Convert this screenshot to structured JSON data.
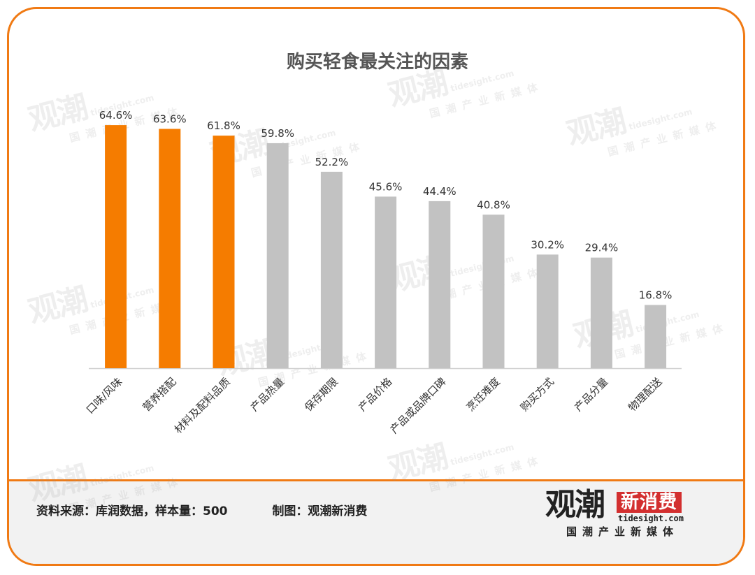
{
  "chart_data": {
    "type": "bar",
    "title": "购买轻食最关注的因素",
    "categories": [
      "口味/风味",
      "营养搭配",
      "材料及配料品质",
      "产品热量",
      "保存期限",
      "产品价格",
      "产品或品牌口碑",
      "烹饪难度",
      "购买方式",
      "产品分量",
      "物理配送"
    ],
    "values": [
      64.6,
      63.6,
      61.8,
      59.8,
      52.2,
      45.6,
      44.4,
      40.8,
      30.2,
      29.4,
      16.8
    ],
    "value_suffix": "%",
    "highlight_count": 3,
    "ylim": [
      0,
      70
    ],
    "grid": false,
    "legend": "none"
  },
  "colors": {
    "highlight": "#f57c00",
    "normal": "#c2c2c2",
    "frame": "#f07a14"
  },
  "footer": {
    "source": "资料来源：库润数据，样本量：500",
    "credit": "制图：观潮新消费"
  },
  "logo": {
    "main": "观潮",
    "badge": "新消费",
    "site": "tidesight.com",
    "tagline": "国潮产业新媒体"
  }
}
